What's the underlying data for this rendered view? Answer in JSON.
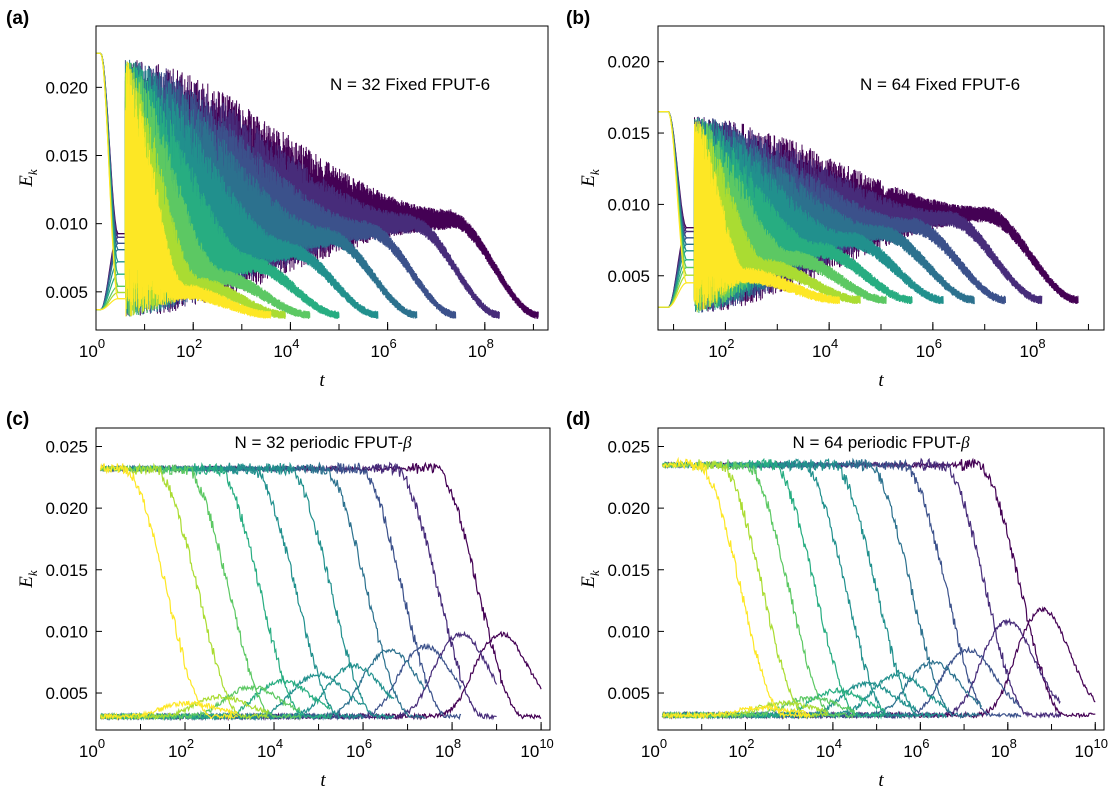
{
  "figure": {
    "colormap": [
      "#440154",
      "#472c7a",
      "#3b518b",
      "#2c718e",
      "#21908d",
      "#27ad81",
      "#5cc863",
      "#aadc32",
      "#fde725"
    ]
  },
  "chart_data": [
    {
      "panel": "(a)",
      "type": "line",
      "annotation": "N = 32 Fixed FPUT-6",
      "xlabel": "t",
      "ylabel_base": "E",
      "ylabel_sub": "k",
      "xscale": "log",
      "xlim_exp": [
        0,
        9.3
      ],
      "ylim": [
        0.0022,
        0.0245
      ],
      "x_ticks": [
        {
          "exp": 0,
          "base": "10",
          "sup": "0"
        },
        {
          "exp": 2,
          "base": "10",
          "sup": "2"
        },
        {
          "exp": 4,
          "base": "10",
          "sup": "4"
        },
        {
          "exp": 6,
          "base": "10",
          "sup": "6"
        },
        {
          "exp": 8,
          "base": "10",
          "sup": "8"
        }
      ],
      "y_ticks": [
        {
          "value": 0.005,
          "label": "0.005"
        },
        {
          "value": 0.01,
          "label": "0.010"
        },
        {
          "value": 0.015,
          "label": "0.015"
        },
        {
          "value": 0.02,
          "label": "0.020"
        }
      ],
      "series_style": "oscillating",
      "series": [
        {
          "end_exp": 9.1,
          "plateau": 0.0103,
          "high_start": 0.0225,
          "low_start": 0.0037,
          "drop_exp": 0.2
        },
        {
          "end_exp": 8.3,
          "plateau": 0.01,
          "high_start": 0.0225,
          "low_start": 0.0037,
          "drop_exp": 0.2
        },
        {
          "end_exp": 7.4,
          "plateau": 0.0095,
          "high_start": 0.0225,
          "low_start": 0.0037,
          "drop_exp": 0.2
        },
        {
          "end_exp": 6.6,
          "plateau": 0.009,
          "high_start": 0.0225,
          "low_start": 0.0037,
          "drop_exp": 0.2
        },
        {
          "end_exp": 5.8,
          "plateau": 0.008,
          "high_start": 0.0225,
          "low_start": 0.0037,
          "drop_exp": 0.2
        },
        {
          "end_exp": 5.0,
          "plateau": 0.007,
          "high_start": 0.0225,
          "low_start": 0.0037,
          "drop_exp": 0.2
        },
        {
          "end_exp": 4.4,
          "plateau": 0.006,
          "high_start": 0.0225,
          "low_start": 0.0037,
          "drop_exp": 0.2
        },
        {
          "end_exp": 3.9,
          "plateau": 0.0055,
          "high_start": 0.0225,
          "low_start": 0.0037,
          "drop_exp": 0.2
        },
        {
          "end_exp": 3.6,
          "plateau": 0.005,
          "high_start": 0.0225,
          "low_start": 0.0037,
          "drop_exp": 0.2
        }
      ]
    },
    {
      "panel": "(b)",
      "type": "line",
      "annotation": "N = 64 Fixed FPUT-6",
      "xlabel": "t",
      "ylabel_base": "E",
      "ylabel_sub": "k",
      "xscale": "log",
      "xlim_exp": [
        0.7,
        9.3
      ],
      "ylim": [
        0.0012,
        0.0225
      ],
      "x_ticks": [
        {
          "exp": 2,
          "base": "10",
          "sup": "2"
        },
        {
          "exp": 4,
          "base": "10",
          "sup": "4"
        },
        {
          "exp": 6,
          "base": "10",
          "sup": "6"
        },
        {
          "exp": 8,
          "base": "10",
          "sup": "8"
        }
      ],
      "y_ticks": [
        {
          "value": 0.005,
          "label": "0.005"
        },
        {
          "value": 0.01,
          "label": "0.010"
        },
        {
          "value": 0.015,
          "label": "0.015"
        },
        {
          "value": 0.02,
          "label": "0.020"
        }
      ],
      "series_style": "oscillating",
      "series": [
        {
          "end_exp": 8.8,
          "plateau": 0.0093,
          "high_start": 0.0165,
          "low_start": 0.0028,
          "drop_exp": 1.0
        },
        {
          "end_exp": 8.1,
          "plateau": 0.009,
          "high_start": 0.0165,
          "low_start": 0.0028,
          "drop_exp": 1.0
        },
        {
          "end_exp": 7.4,
          "plateau": 0.0085,
          "high_start": 0.0165,
          "low_start": 0.0028,
          "drop_exp": 1.0
        },
        {
          "end_exp": 6.8,
          "plateau": 0.008,
          "high_start": 0.0165,
          "low_start": 0.0028,
          "drop_exp": 1.0
        },
        {
          "end_exp": 6.2,
          "plateau": 0.0075,
          "high_start": 0.0165,
          "low_start": 0.0028,
          "drop_exp": 1.0
        },
        {
          "end_exp": 5.6,
          "plateau": 0.0068,
          "high_start": 0.0165,
          "low_start": 0.0028,
          "drop_exp": 1.0
        },
        {
          "end_exp": 5.1,
          "plateau": 0.0062,
          "high_start": 0.0165,
          "low_start": 0.0028,
          "drop_exp": 1.0
        },
        {
          "end_exp": 4.6,
          "plateau": 0.0056,
          "high_start": 0.0165,
          "low_start": 0.0028,
          "drop_exp": 1.0
        },
        {
          "end_exp": 4.2,
          "plateau": 0.005,
          "high_start": 0.0165,
          "low_start": 0.0028,
          "drop_exp": 1.0
        }
      ]
    },
    {
      "panel": "(c)",
      "type": "line",
      "annotation_prefix": "N = 32 periodic FPUT-",
      "annotation_symbol": "β",
      "xlabel": "t",
      "ylabel_base": "E",
      "ylabel_sub": "k",
      "xscale": "log",
      "xlim_exp": [
        0,
        10.2
      ],
      "ylim": [
        0.002,
        0.0265
      ],
      "x_ticks": [
        {
          "exp": 0,
          "base": "10",
          "sup": "0"
        },
        {
          "exp": 2,
          "base": "10",
          "sup": "2"
        },
        {
          "exp": 4,
          "base": "10",
          "sup": "4"
        },
        {
          "exp": 6,
          "base": "10",
          "sup": "6"
        },
        {
          "exp": 8,
          "base": "10",
          "sup": "8"
        },
        {
          "exp": 10,
          "base": "10",
          "sup": "10"
        }
      ],
      "y_ticks": [
        {
          "value": 0.005,
          "label": "0.005"
        },
        {
          "value": 0.01,
          "label": "0.010"
        },
        {
          "value": 0.015,
          "label": "0.015"
        },
        {
          "value": 0.02,
          "label": "0.020"
        },
        {
          "value": 0.025,
          "label": "0.025"
        }
      ],
      "series_style": "crossover",
      "series": [
        {
          "drop_center": 8.6,
          "crossover_peak": 0.0098,
          "end_exp": 10.0,
          "high": 0.0232,
          "low": 0.0031
        },
        {
          "drop_center": 7.7,
          "crossover_peak": 0.0098,
          "end_exp": 9.0,
          "high": 0.0232,
          "low": 0.0031
        },
        {
          "drop_center": 6.9,
          "crossover_peak": 0.0088,
          "end_exp": 8.2,
          "high": 0.0232,
          "low": 0.0031
        },
        {
          "drop_center": 6.1,
          "crossover_peak": 0.0085,
          "end_exp": 7.4,
          "high": 0.0232,
          "low": 0.0031
        },
        {
          "drop_center": 5.3,
          "crossover_peak": 0.0072,
          "end_exp": 6.7,
          "high": 0.0232,
          "low": 0.0031
        },
        {
          "drop_center": 4.5,
          "crossover_peak": 0.0065,
          "end_exp": 6.0,
          "high": 0.0232,
          "low": 0.0031
        },
        {
          "drop_center": 3.7,
          "crossover_peak": 0.006,
          "end_exp": 5.3,
          "high": 0.0232,
          "low": 0.0031
        },
        {
          "drop_center": 3.0,
          "crossover_peak": 0.0055,
          "end_exp": 4.6,
          "high": 0.0232,
          "low": 0.0031
        },
        {
          "drop_center": 2.3,
          "crossover_peak": 0.0047,
          "end_exp": 3.9,
          "high": 0.0232,
          "low": 0.0031
        },
        {
          "drop_center": 1.6,
          "crossover_peak": 0.0042,
          "end_exp": 3.2,
          "high": 0.0232,
          "low": 0.0031
        }
      ]
    },
    {
      "panel": "(d)",
      "type": "line",
      "annotation_prefix": "N = 64 periodic FPUT-",
      "annotation_symbol": "β",
      "xlabel": "t",
      "ylabel_base": "E",
      "ylabel_sub": "k",
      "xscale": "log",
      "xlim_exp": [
        0,
        10.2
      ],
      "ylim": [
        0.002,
        0.0265
      ],
      "x_ticks": [
        {
          "exp": 0,
          "base": "10",
          "sup": "0"
        },
        {
          "exp": 2,
          "base": "10",
          "sup": "2"
        },
        {
          "exp": 4,
          "base": "10",
          "sup": "4"
        },
        {
          "exp": 6,
          "base": "10",
          "sup": "6"
        },
        {
          "exp": 8,
          "base": "10",
          "sup": "8"
        },
        {
          "exp": 10,
          "base": "10",
          "sup": "10"
        }
      ],
      "y_ticks": [
        {
          "value": 0.005,
          "label": "0.005"
        },
        {
          "value": 0.01,
          "label": "0.010"
        },
        {
          "value": 0.015,
          "label": "0.015"
        },
        {
          "value": 0.02,
          "label": "0.020"
        },
        {
          "value": 0.025,
          "label": "0.025"
        }
      ],
      "series_style": "crossover",
      "series": [
        {
          "drop_center": 8.3,
          "crossover_peak": 0.0118,
          "end_exp": 10.0,
          "high": 0.0235,
          "low": 0.0032
        },
        {
          "drop_center": 7.5,
          "crossover_peak": 0.0108,
          "end_exp": 9.2,
          "high": 0.0235,
          "low": 0.0032
        },
        {
          "drop_center": 6.6,
          "crossover_peak": 0.0085,
          "end_exp": 8.3,
          "high": 0.0235,
          "low": 0.0032
        },
        {
          "drop_center": 5.8,
          "crossover_peak": 0.0075,
          "end_exp": 7.4,
          "high": 0.0235,
          "low": 0.0032
        },
        {
          "drop_center": 5.0,
          "crossover_peak": 0.0065,
          "end_exp": 6.6,
          "high": 0.0235,
          "low": 0.0032
        },
        {
          "drop_center": 4.3,
          "crossover_peak": 0.0058,
          "end_exp": 5.9,
          "high": 0.0235,
          "low": 0.0032
        },
        {
          "drop_center": 3.6,
          "crossover_peak": 0.0052,
          "end_exp": 5.2,
          "high": 0.0235,
          "low": 0.0032
        },
        {
          "drop_center": 3.0,
          "crossover_peak": 0.0046,
          "end_exp": 4.5,
          "high": 0.0235,
          "low": 0.0032
        },
        {
          "drop_center": 2.4,
          "crossover_peak": 0.0042,
          "end_exp": 3.9,
          "high": 0.0235,
          "low": 0.0032
        },
        {
          "drop_center": 1.9,
          "crossover_peak": 0.0038,
          "end_exp": 3.5,
          "high": 0.0235,
          "low": 0.0032
        }
      ]
    }
  ]
}
